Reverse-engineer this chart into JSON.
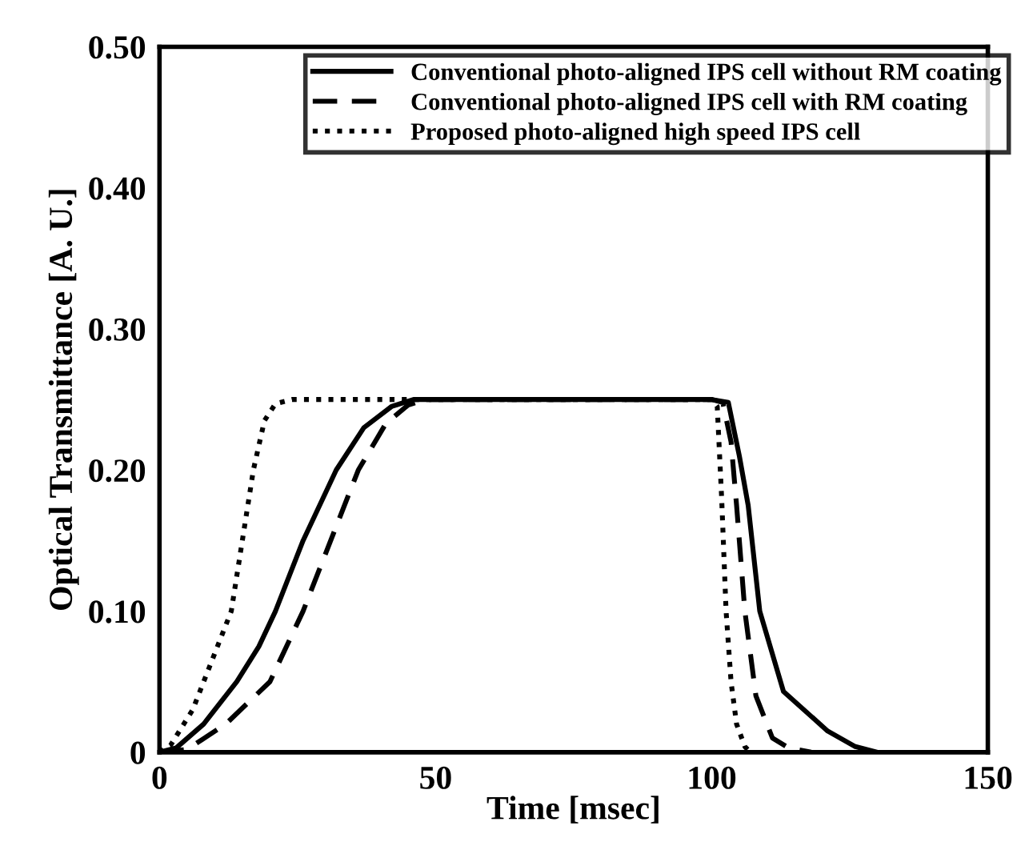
{
  "chart_data": {
    "type": "line",
    "xlabel": "Time [msec]",
    "ylabel": "Optical Transmittance [A. U.]",
    "xlim": [
      0,
      150
    ],
    "xticks": [
      0,
      50,
      100,
      150
    ],
    "ylim": [
      0,
      0.5
    ],
    "yticks": [
      {
        "value": 0,
        "label": "0"
      },
      {
        "value": 0.1,
        "label": "0.10"
      },
      {
        "value": 0.2,
        "label": "0.20"
      },
      {
        "value": 0.3,
        "label": "0.30"
      },
      {
        "value": 0.4,
        "label": "0.40"
      },
      {
        "value": 0.5,
        "label": "0.50"
      }
    ],
    "grid": false,
    "legend": "top right",
    "marker": "none",
    "series": [
      {
        "name": "Conventional photo-aligned IPS cell without RM coating",
        "color": "#000000",
        "line_style": "solid",
        "x": [
          0,
          3,
          8,
          14,
          18,
          21,
          26,
          32,
          37,
          42,
          46,
          60,
          80,
          100,
          103,
          105,
          106.6,
          108.7,
          113,
          121,
          126,
          130
        ],
        "values": [
          0,
          0.003,
          0.02,
          0.05,
          0.075,
          0.1,
          0.15,
          0.2,
          0.23,
          0.245,
          0.25,
          0.25,
          0.25,
          0.25,
          0.248,
          0.21,
          0.175,
          0.1,
          0.043,
          0.015,
          0.004,
          0
        ]
      },
      {
        "name": "Conventional photo-aligned IPS cell with RM coating",
        "color": "#000000",
        "line_style": "dashed",
        "x": [
          0,
          5,
          12,
          20,
          26,
          31,
          36,
          41,
          45,
          48,
          60,
          80,
          100,
          102,
          103.5,
          104.5,
          106,
          108,
          111,
          114,
          118
        ],
        "values": [
          0,
          0.002,
          0.02,
          0.05,
          0.1,
          0.15,
          0.2,
          0.233,
          0.246,
          0.25,
          0.25,
          0.25,
          0.25,
          0.248,
          0.22,
          0.175,
          0.1,
          0.04,
          0.01,
          0.003,
          0
        ]
      },
      {
        "name": "Proposed photo-aligned high speed IPS cell",
        "color": "#000000",
        "line_style": "dotted",
        "x": [
          0,
          2,
          6,
          10,
          13,
          15,
          17,
          19,
          21,
          24,
          30,
          50,
          80,
          100,
          101,
          101.8,
          102.6,
          103.5,
          104.5,
          106,
          107
        ],
        "values": [
          0,
          0.005,
          0.03,
          0.07,
          0.1,
          0.15,
          0.2,
          0.235,
          0.247,
          0.25,
          0.25,
          0.25,
          0.25,
          0.25,
          0.245,
          0.18,
          0.1,
          0.05,
          0.02,
          0.004,
          0
        ]
      }
    ]
  }
}
